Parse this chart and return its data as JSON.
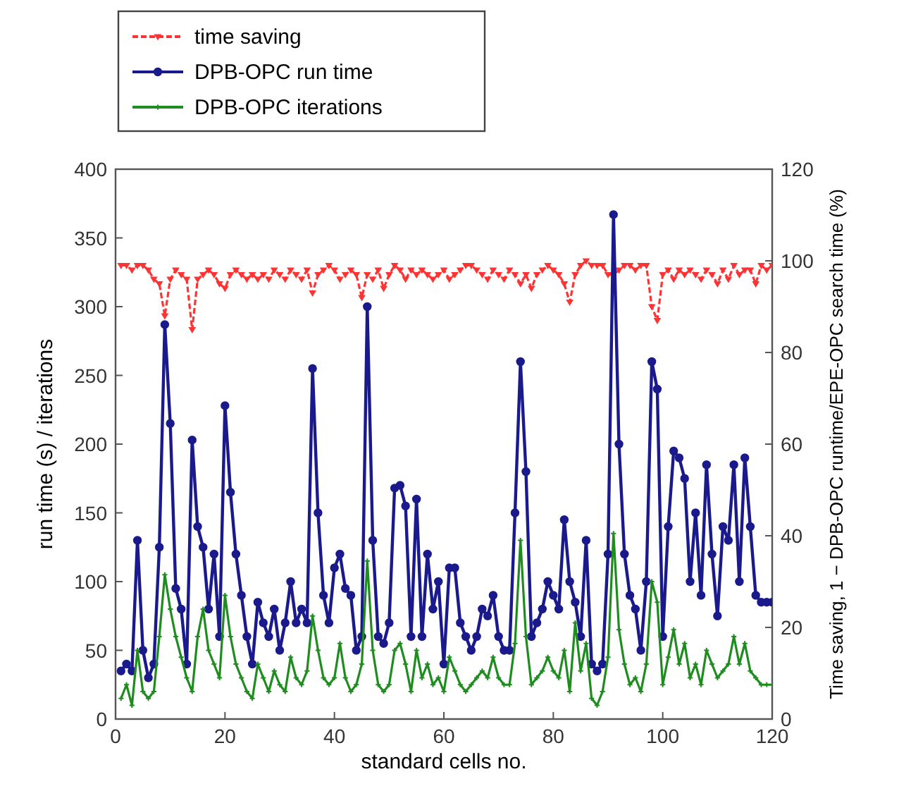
{
  "chart_data": {
    "type": "line",
    "xlabel": "standard cells no.",
    "ylabel": "run time (s) / iterations",
    "y2label": "Time saving, 1 − DPB-OPC runtime/EPE-OPC search time (%)",
    "x": [
      1,
      2,
      3,
      4,
      5,
      6,
      7,
      8,
      9,
      10,
      11,
      12,
      13,
      14,
      15,
      16,
      17,
      18,
      19,
      20,
      21,
      22,
      23,
      24,
      25,
      26,
      27,
      28,
      29,
      30,
      31,
      32,
      33,
      34,
      35,
      36,
      37,
      38,
      39,
      40,
      41,
      42,
      43,
      44,
      45,
      46,
      47,
      48,
      49,
      50,
      51,
      52,
      53,
      54,
      55,
      56,
      57,
      58,
      59,
      60,
      61,
      62,
      63,
      64,
      65,
      66,
      67,
      68,
      69,
      70,
      71,
      72,
      73,
      74,
      75,
      76,
      77,
      78,
      79,
      80,
      81,
      82,
      83,
      84,
      85,
      86,
      87,
      88,
      89,
      90,
      91,
      92,
      93,
      94,
      95,
      96,
      97,
      98,
      99,
      100,
      101,
      102,
      103,
      104,
      105,
      106,
      107,
      108,
      109,
      110,
      111,
      112,
      113,
      114,
      115,
      116,
      117,
      118,
      119,
      120
    ],
    "series": [
      {
        "name": "time saving",
        "color": "#ff3333",
        "axis": "y2",
        "marker": "triangle",
        "line_style": "dashed",
        "values": [
          99,
          99,
          98,
          99,
          99,
          98,
          96,
          95,
          88,
          96,
          98,
          97,
          96,
          85,
          96,
          97,
          98,
          97,
          95,
          94,
          97,
          98,
          97,
          96,
          97,
          96,
          97,
          96,
          98,
          97,
          96,
          98,
          97,
          96,
          98,
          93,
          97,
          98,
          99,
          98,
          96,
          97,
          98,
          97,
          92,
          97,
          96,
          98,
          94,
          97,
          99,
          98,
          96,
          98,
          97,
          98,
          97,
          96,
          97,
          98,
          96,
          97,
          98,
          99,
          99,
          98,
          97,
          96,
          98,
          97,
          96,
          98,
          97,
          95,
          97,
          94,
          97,
          98,
          99,
          98,
          97,
          95,
          91,
          97,
          99,
          100,
          99,
          99,
          99,
          97,
          97,
          98,
          99,
          99,
          98,
          99,
          99,
          90,
          87,
          97,
          98,
          96,
          98,
          97,
          98,
          97,
          96,
          98,
          97,
          95,
          98,
          96,
          99,
          97,
          98,
          98,
          95,
          99,
          98,
          99
        ]
      },
      {
        "name": "DPB-OPC run time",
        "color": "#1a1a8c",
        "marker": "circle",
        "line_style": "solid",
        "values": [
          35,
          40,
          35,
          130,
          50,
          30,
          40,
          125,
          287,
          215,
          95,
          80,
          40,
          203,
          140,
          125,
          80,
          120,
          60,
          228,
          165,
          120,
          90,
          60,
          40,
          85,
          70,
          60,
          80,
          50,
          70,
          100,
          70,
          80,
          70,
          255,
          150,
          90,
          70,
          110,
          120,
          95,
          90,
          50,
          60,
          300,
          130,
          60,
          55,
          70,
          168,
          170,
          155,
          60,
          160,
          60,
          120,
          80,
          100,
          40,
          110,
          110,
          70,
          60,
          50,
          60,
          80,
          75,
          90,
          60,
          50,
          50,
          150,
          260,
          180,
          60,
          70,
          80,
          100,
          90,
          80,
          145,
          100,
          85,
          60,
          130,
          40,
          35,
          40,
          120,
          367,
          200,
          120,
          90,
          80,
          50,
          100,
          260,
          240,
          60,
          140,
          195,
          190,
          175,
          100,
          150,
          90,
          185,
          120,
          75,
          140,
          130,
          185,
          100,
          190,
          140,
          90,
          85,
          85,
          85
        ]
      },
      {
        "name": "DPB-OPC iterations",
        "color": "#1e8c1e",
        "marker": "cross",
        "line_style": "solid",
        "values": [
          15,
          25,
          10,
          50,
          20,
          15,
          20,
          60,
          105,
          80,
          60,
          45,
          30,
          20,
          60,
          80,
          50,
          40,
          30,
          90,
          60,
          40,
          30,
          20,
          15,
          40,
          30,
          20,
          35,
          25,
          20,
          45,
          30,
          25,
          35,
          75,
          50,
          30,
          25,
          30,
          55,
          30,
          20,
          25,
          40,
          115,
          50,
          25,
          20,
          25,
          50,
          55,
          40,
          20,
          50,
          30,
          40,
          25,
          30,
          20,
          45,
          35,
          25,
          20,
          25,
          30,
          35,
          30,
          45,
          30,
          25,
          25,
          55,
          130,
          60,
          25,
          30,
          35,
          45,
          35,
          30,
          50,
          20,
          70,
          35,
          55,
          15,
          10,
          20,
          45,
          135,
          65,
          40,
          25,
          30,
          20,
          40,
          100,
          85,
          25,
          45,
          65,
          40,
          55,
          30,
          40,
          25,
          50,
          40,
          30,
          35,
          40,
          60,
          40,
          55,
          35,
          30,
          25,
          25,
          25
        ]
      }
    ],
    "xlim": [
      0,
      120
    ],
    "xticks": [
      0,
      20,
      40,
      60,
      80,
      100,
      120
    ],
    "ylim": [
      0,
      400
    ],
    "yticks": [
      0,
      50,
      100,
      150,
      200,
      250,
      300,
      350,
      400
    ],
    "y2lim": [
      0,
      120
    ],
    "y2ticks": [
      0,
      20,
      40,
      60,
      80,
      100,
      120
    ],
    "grid": false,
    "legend": "top left"
  }
}
